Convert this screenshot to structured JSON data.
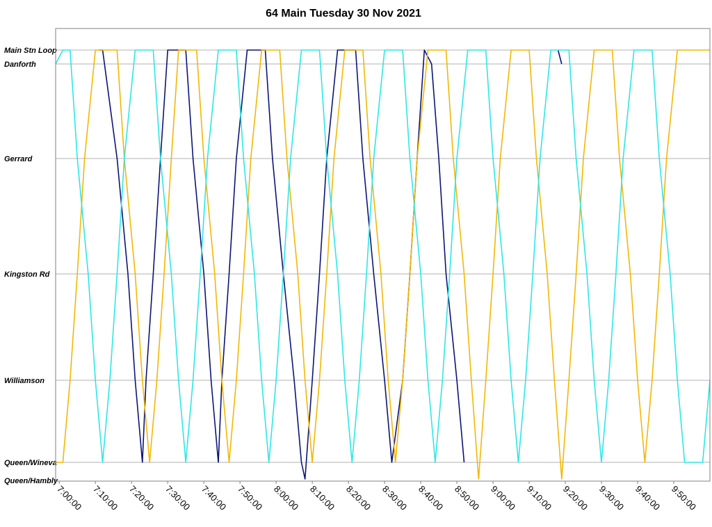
{
  "chart_data": {
    "type": "line",
    "title": "64 Main Tuesday 30 Nov 2021",
    "xlabel": "",
    "ylabel": "",
    "x_unit": "time of day (h:mm:ss)",
    "xlim": [
      "6:59:00",
      "10:00:00"
    ],
    "x_ticks": [
      "7:00:00",
      "7:10:00",
      "7:20:00",
      "7:30:00",
      "7:40:00",
      "7:50:00",
      "8:00:00",
      "8:10:00",
      "8:20:00",
      "8:30:00",
      "8:40:00",
      "8:50:00",
      "9:00:00",
      "9:10:00",
      "9:20:00",
      "9:30:00",
      "9:40:00",
      "9:50:00"
    ],
    "y_stops": [
      "Queen/Hambly",
      "Queen/Wineva",
      "Williamson",
      "Kingston Rd",
      "Gerrard",
      "Danforth",
      "Main Stn Loop"
    ],
    "grid": true,
    "legend": "none",
    "colors": {
      "navy": "#0b1475",
      "orange": "#f2b705",
      "cyan": "#2ee6e6",
      "grid": "#b0b0b0"
    },
    "series": [
      {
        "color": "#0b1475",
        "points": [
          [
            "7:11:00",
            "Main Stn Loop"
          ],
          [
            "7:12:00",
            "Main Stn Loop"
          ],
          [
            "7:16:00",
            "Gerrard"
          ],
          [
            "7:19:00",
            "Kingston Rd"
          ],
          [
            "7:21:00",
            "Williamson"
          ],
          [
            "7:23:00",
            "Queen/Wineva"
          ],
          [
            "7:24:00",
            "Williamson"
          ],
          [
            "7:26:00",
            "Kingston Rd"
          ],
          [
            "7:28:00",
            "Gerrard"
          ],
          [
            "7:30:00",
            "Main Stn Loop"
          ],
          [
            "7:35:00",
            "Main Stn Loop"
          ],
          [
            "7:37:00",
            "Gerrard"
          ],
          [
            "7:40:00",
            "Kingston Rd"
          ],
          [
            "7:42:00",
            "Williamson"
          ],
          [
            "7:44:00",
            "Queen/Wineva"
          ],
          [
            "7:45:00",
            "Williamson"
          ],
          [
            "7:47:00",
            "Kingston Rd"
          ],
          [
            "7:49:00",
            "Gerrard"
          ],
          [
            "7:52:00",
            "Main Stn Loop"
          ],
          [
            "7:57:00",
            "Main Stn Loop"
          ],
          [
            "7:59:00",
            "Gerrard"
          ],
          [
            "8:02:00",
            "Kingston Rd"
          ],
          [
            "8:05:00",
            "Williamson"
          ],
          [
            "8:07:00",
            "Queen/Wineva"
          ],
          [
            "8:08:00",
            "Queen/Hambly"
          ],
          [
            "8:10:00",
            "Williamson"
          ],
          [
            "8:12:00",
            "Kingston Rd"
          ],
          [
            "8:14:00",
            "Gerrard"
          ],
          [
            "8:17:00",
            "Main Stn Loop"
          ],
          [
            "8:22:00",
            "Main Stn Loop"
          ],
          [
            "8:24:00",
            "Gerrard"
          ],
          [
            "8:27:00",
            "Kingston Rd"
          ],
          [
            "8:30:00",
            "Williamson"
          ],
          [
            "8:32:00",
            "Queen/Wineva"
          ],
          [
            "8:35:00",
            "Williamson"
          ],
          [
            "8:37:00",
            "Kingston Rd"
          ],
          [
            "8:39:00",
            "Gerrard"
          ],
          [
            "8:41:00",
            "Main Stn Loop"
          ],
          [
            "8:43:00",
            "Danforth"
          ],
          [
            "8:45:00",
            "Gerrard"
          ],
          [
            "8:47:00",
            "Kingston Rd"
          ],
          [
            "8:50:00",
            "Williamson"
          ],
          [
            "8:52:00",
            "Queen/Wineva"
          ]
        ]
      },
      {
        "color": "#0b1475",
        "points": [
          [
            "9:18:00",
            "Main Stn Loop"
          ],
          [
            "9:19:00",
            "Danforth"
          ]
        ]
      },
      {
        "color": "#f2b705",
        "points": [
          [
            "6:59:00",
            "Queen/Wineva"
          ],
          [
            "7:01:00",
            "Queen/Wineva"
          ],
          [
            "7:03:00",
            "Williamson"
          ],
          [
            "7:05:00",
            "Kingston Rd"
          ],
          [
            "7:07:00",
            "Gerrard"
          ],
          [
            "7:10:00",
            "Main Stn Loop"
          ],
          [
            "7:16:00",
            "Main Stn Loop"
          ],
          [
            "7:18:00",
            "Gerrard"
          ],
          [
            "7:21:00",
            "Kingston Rd"
          ],
          [
            "7:23:00",
            "Williamson"
          ],
          [
            "7:25:00",
            "Queen/Wineva"
          ],
          [
            "7:27:00",
            "Williamson"
          ],
          [
            "7:29:00",
            "Kingston Rd"
          ],
          [
            "7:31:00",
            "Gerrard"
          ],
          [
            "7:33:00",
            "Main Stn Loop"
          ],
          [
            "7:38:00",
            "Main Stn Loop"
          ],
          [
            "7:40:00",
            "Gerrard"
          ],
          [
            "7:43:00",
            "Kingston Rd"
          ],
          [
            "7:45:00",
            "Williamson"
          ],
          [
            "7:47:00",
            "Queen/Wineva"
          ],
          [
            "7:49:00",
            "Williamson"
          ],
          [
            "7:51:00",
            "Kingston Rd"
          ],
          [
            "7:53:00",
            "Gerrard"
          ],
          [
            "7:56:00",
            "Main Stn Loop"
          ],
          [
            "8:01:00",
            "Main Stn Loop"
          ],
          [
            "8:03:00",
            "Gerrard"
          ],
          [
            "8:06:00",
            "Kingston Rd"
          ],
          [
            "8:08:00",
            "Williamson"
          ],
          [
            "8:10:00",
            "Queen/Wineva"
          ],
          [
            "8:12:00",
            "Williamson"
          ],
          [
            "8:14:00",
            "Kingston Rd"
          ],
          [
            "8:16:00",
            "Gerrard"
          ],
          [
            "8:19:00",
            "Main Stn Loop"
          ],
          [
            "8:24:00",
            "Main Stn Loop"
          ],
          [
            "8:26:00",
            "Gerrard"
          ],
          [
            "8:29:00",
            "Kingston Rd"
          ],
          [
            "8:31:00",
            "Williamson"
          ],
          [
            "8:33:00",
            "Queen/Wineva"
          ],
          [
            "8:35:00",
            "Williamson"
          ],
          [
            "8:37:00",
            "Kingston Rd"
          ],
          [
            "8:39:00",
            "Gerrard"
          ],
          [
            "8:42:00",
            "Main Stn Loop"
          ],
          [
            "8:47:00",
            "Main Stn Loop"
          ],
          [
            "8:49:00",
            "Gerrard"
          ],
          [
            "8:52:00",
            "Kingston Rd"
          ],
          [
            "8:54:00",
            "Williamson"
          ],
          [
            "8:56:00",
            "Queen/Hambly"
          ],
          [
            "8:58:00",
            "Williamson"
          ],
          [
            "9:00:00",
            "Kingston Rd"
          ],
          [
            "9:02:00",
            "Gerrard"
          ],
          [
            "9:05:00",
            "Main Stn Loop"
          ],
          [
            "9:10:00",
            "Main Stn Loop"
          ],
          [
            "9:12:00",
            "Gerrard"
          ],
          [
            "9:15:00",
            "Kingston Rd"
          ],
          [
            "9:17:00",
            "Williamson"
          ],
          [
            "9:19:00",
            "Queen/Hambly"
          ],
          [
            "9:21:00",
            "Williamson"
          ],
          [
            "9:23:00",
            "Kingston Rd"
          ],
          [
            "9:25:00",
            "Gerrard"
          ],
          [
            "9:28:00",
            "Main Stn Loop"
          ],
          [
            "9:33:00",
            "Main Stn Loop"
          ],
          [
            "9:35:00",
            "Gerrard"
          ],
          [
            "9:38:00",
            "Kingston Rd"
          ],
          [
            "9:40:00",
            "Williamson"
          ],
          [
            "9:42:00",
            "Queen/Wineva"
          ],
          [
            "9:44:00",
            "Williamson"
          ],
          [
            "9:46:00",
            "Kingston Rd"
          ],
          [
            "9:48:00",
            "Gerrard"
          ],
          [
            "9:51:00",
            "Main Stn Loop"
          ],
          [
            "10:00:00",
            "Main Stn Loop"
          ]
        ]
      },
      {
        "color": "#2ee6e6",
        "points": [
          [
            "6:59:00",
            "Danforth"
          ],
          [
            "7:01:00",
            "Main Stn Loop"
          ],
          [
            "7:03:00",
            "Main Stn Loop"
          ],
          [
            "7:05:00",
            "Gerrard"
          ],
          [
            "7:08:00",
            "Kingston Rd"
          ],
          [
            "7:10:00",
            "Williamson"
          ],
          [
            "7:12:00",
            "Queen/Wineva"
          ],
          [
            "7:14:00",
            "Williamson"
          ],
          [
            "7:16:00",
            "Kingston Rd"
          ],
          [
            "7:18:00",
            "Gerrard"
          ],
          [
            "7:21:00",
            "Main Stn Loop"
          ],
          [
            "7:26:00",
            "Main Stn Loop"
          ],
          [
            "7:28:00",
            "Gerrard"
          ],
          [
            "7:31:00",
            "Kingston Rd"
          ],
          [
            "7:33:00",
            "Williamson"
          ],
          [
            "7:35:00",
            "Queen/Wineva"
          ],
          [
            "7:37:00",
            "Williamson"
          ],
          [
            "7:39:00",
            "Kingston Rd"
          ],
          [
            "7:41:00",
            "Gerrard"
          ],
          [
            "7:44:00",
            "Main Stn Loop"
          ],
          [
            "7:49:00",
            "Main Stn Loop"
          ],
          [
            "7:51:00",
            "Gerrard"
          ],
          [
            "7:54:00",
            "Kingston Rd"
          ],
          [
            "7:56:00",
            "Williamson"
          ],
          [
            "7:58:00",
            "Queen/Wineva"
          ],
          [
            "8:00:00",
            "Williamson"
          ],
          [
            "8:02:00",
            "Kingston Rd"
          ],
          [
            "8:04:00",
            "Gerrard"
          ],
          [
            "8:07:00",
            "Main Stn Loop"
          ],
          [
            "8:12:00",
            "Main Stn Loop"
          ],
          [
            "8:14:00",
            "Gerrard"
          ],
          [
            "8:17:00",
            "Kingston Rd"
          ],
          [
            "8:19:00",
            "Williamson"
          ],
          [
            "8:21:00",
            "Queen/Wineva"
          ],
          [
            "8:23:00",
            "Williamson"
          ],
          [
            "8:25:00",
            "Kingston Rd"
          ],
          [
            "8:27:00",
            "Gerrard"
          ],
          [
            "8:30:00",
            "Main Stn Loop"
          ],
          [
            "8:35:00",
            "Main Stn Loop"
          ],
          [
            "8:37:00",
            "Gerrard"
          ],
          [
            "8:40:00",
            "Kingston Rd"
          ],
          [
            "8:42:00",
            "Williamson"
          ],
          [
            "8:44:00",
            "Queen/Wineva"
          ],
          [
            "8:46:00",
            "Williamson"
          ],
          [
            "8:48:00",
            "Kingston Rd"
          ],
          [
            "8:50:00",
            "Gerrard"
          ],
          [
            "8:53:00",
            "Main Stn Loop"
          ],
          [
            "8:58:00",
            "Main Stn Loop"
          ],
          [
            "9:00:00",
            "Gerrard"
          ],
          [
            "9:03:00",
            "Kingston Rd"
          ],
          [
            "9:05:00",
            "Williamson"
          ],
          [
            "9:07:00",
            "Queen/Wineva"
          ],
          [
            "9:09:00",
            "Williamson"
          ],
          [
            "9:11:00",
            "Kingston Rd"
          ],
          [
            "9:13:00",
            "Gerrard"
          ],
          [
            "9:16:00",
            "Main Stn Loop"
          ],
          [
            "9:21:00",
            "Main Stn Loop"
          ],
          [
            "9:23:00",
            "Gerrard"
          ],
          [
            "9:26:00",
            "Kingston Rd"
          ],
          [
            "9:28:00",
            "Williamson"
          ],
          [
            "9:30:00",
            "Queen/Wineva"
          ],
          [
            "9:32:00",
            "Williamson"
          ],
          [
            "9:34:00",
            "Kingston Rd"
          ],
          [
            "9:36:00",
            "Gerrard"
          ],
          [
            "9:39:00",
            "Main Stn Loop"
          ],
          [
            "9:44:00",
            "Main Stn Loop"
          ],
          [
            "9:46:00",
            "Gerrard"
          ],
          [
            "9:49:00",
            "Kingston Rd"
          ],
          [
            "9:51:00",
            "Williamson"
          ],
          [
            "9:53:00",
            "Queen/Wineva"
          ],
          [
            "9:58:00",
            "Queen/Wineva"
          ],
          [
            "10:00:00",
            "Williamson"
          ]
        ]
      }
    ]
  }
}
